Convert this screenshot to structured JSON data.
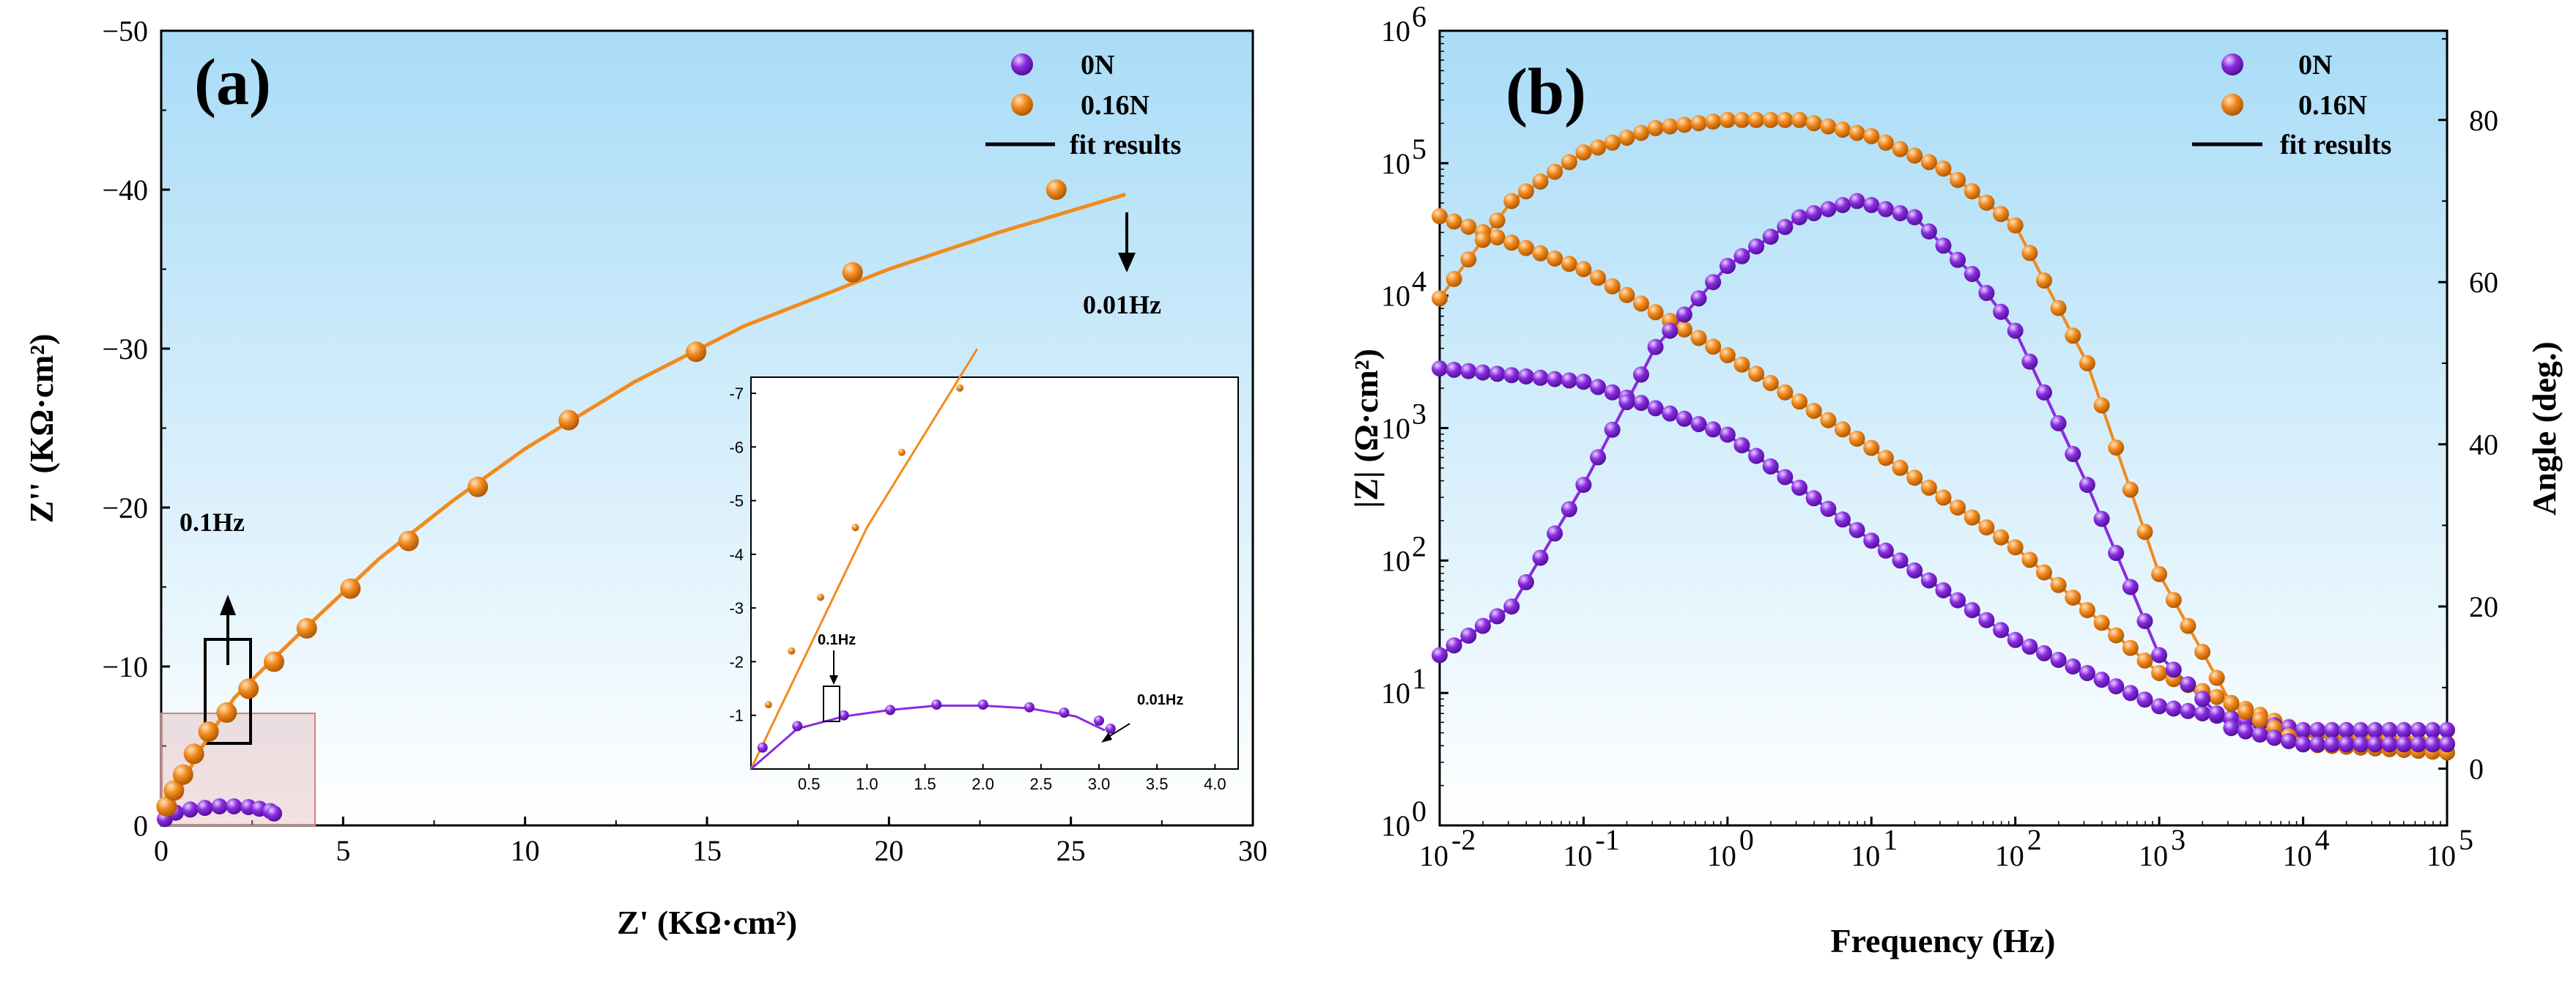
{
  "colors": {
    "n0": "#8a2be2",
    "n016": "#f28a1c",
    "fit": "#000000",
    "bg_top": "#a9dcf7",
    "bg_bottom": "#ffffff"
  },
  "chart_data": [
    {
      "type": "scatter",
      "panel_label": "(a)",
      "title": "",
      "xlabel": "Z' (KΩ·cm²)",
      "ylabel": "Z'' (KΩ·cm²)",
      "xlim": [
        0,
        30
      ],
      "ylim": [
        0,
        -50
      ],
      "xticks": [
        "0",
        "5",
        "10",
        "15",
        "20",
        "25",
        "30"
      ],
      "yticks": [
        "0",
        "−10",
        "−20",
        "−30",
        "−40",
        "−50"
      ],
      "legend": [
        "0N",
        "0.16N",
        "fit results"
      ],
      "annotations": [
        "0.01Hz",
        "0.1Hz"
      ],
      "series": [
        {
          "name": "0N",
          "x": [
            0.1,
            0.4,
            0.8,
            1.2,
            1.6,
            2.0,
            2.4,
            2.7,
            3.0,
            3.1
          ],
          "y": [
            -0.4,
            -0.8,
            -1.0,
            -1.1,
            -1.2,
            -1.2,
            -1.15,
            -1.05,
            -0.9,
            -0.75
          ]
        },
        {
          "name": "0.16N",
          "x": [
            0.15,
            0.35,
            0.6,
            0.9,
            1.3,
            1.8,
            2.4,
            3.1,
            4.0,
            5.2,
            6.8,
            8.7,
            11.2,
            14.7,
            19.0,
            24.6
          ],
          "y": [
            -1.2,
            -2.2,
            -3.2,
            -4.5,
            -5.9,
            -7.1,
            -8.6,
            -10.3,
            -12.4,
            -14.9,
            -17.9,
            -21.3,
            -25.5,
            -29.8,
            -34.8,
            -40.0
          ]
        },
        {
          "name": "fit results (0.16N)",
          "x": [
            0,
            1,
            2,
            3,
            4,
            6,
            8,
            10,
            13,
            16,
            20,
            23,
            26.5
          ],
          "y": [
            0,
            -4.5,
            -8.0,
            -10.3,
            -12.5,
            -16.8,
            -20.4,
            -23.7,
            -27.9,
            -31.4,
            -35.0,
            -37.3,
            -39.7
          ]
        },
        {
          "name": "fit results (0N)",
          "x": [
            0,
            0.4,
            0.8,
            1.2,
            1.6,
            2.0,
            2.4,
            2.8,
            3.05
          ],
          "y": [
            0,
            -0.75,
            -0.98,
            -1.1,
            -1.18,
            -1.18,
            -1.13,
            -0.98,
            -0.72
          ]
        }
      ],
      "inset": {
        "xlim": [
          0,
          4.2
        ],
        "ylim": [
          0,
          -7.3
        ],
        "xticks": [
          "0.5",
          "1.0",
          "1.5",
          "2.0",
          "2.5",
          "3.0",
          "3.5",
          "4.0"
        ],
        "yticks": [
          "-1",
          "-2",
          "-3",
          "-4",
          "-5",
          "-6",
          "-7"
        ],
        "annotations": [
          "0.1Hz",
          "0.01Hz"
        ]
      }
    },
    {
      "type": "line",
      "panel_label": "(b)",
      "title": "",
      "xlabel": "Frequency (Hz)",
      "ylabel": "|Z| (Ω·cm²)",
      "ylabel_right": "Angle (deg.)",
      "xlim": [
        0.01,
        100000
      ],
      "ylim": [
        1,
        1000000
      ],
      "ylim_right": [
        -7,
        91
      ],
      "x_scale": "log",
      "y_scale": "log",
      "xtick_exponents": [
        "-2",
        "-1",
        "0",
        "1",
        "2",
        "3",
        "4",
        "5"
      ],
      "ytick_exponents": [
        "0",
        "1",
        "2",
        "3",
        "4",
        "5",
        "6"
      ],
      "yticks_right": [
        "0",
        "20",
        "40",
        "60",
        "80"
      ],
      "legend": [
        "0N",
        "0.16N",
        "fit results"
      ],
      "series": [
        {
          "name": "0N |Z|",
          "log10_freq": [
            -2,
            -1,
            0,
            1,
            2,
            3,
            4,
            5
          ],
          "log10_Z": [
            3.45,
            3.35,
            2.95,
            2.15,
            1.4,
            0.9,
            0.72,
            0.72
          ]
        },
        {
          "name": "0.16N |Z|",
          "log10_freq": [
            -2,
            -1,
            0,
            1,
            2,
            3,
            4,
            5
          ],
          "log10_Z": [
            4.6,
            4.2,
            3.55,
            2.85,
            2.1,
            1.15,
            0.7,
            0.62
          ]
        },
        {
          "name": "0N angle",
          "log10_freq": [
            -2,
            -1.5,
            -1,
            -0.5,
            0,
            0.5,
            0.9,
            1.3,
            1.7,
            2,
            2.5,
            3,
            3.5,
            4,
            5
          ],
          "angle": [
            14,
            20,
            35,
            52,
            62,
            68,
            70,
            68,
            61,
            54,
            35,
            14,
            5,
            3,
            3
          ]
        },
        {
          "name": "0.16N angle",
          "log10_freq": [
            -2,
            -1.5,
            -1,
            -0.5,
            0,
            0.5,
            1,
            1.5,
            2,
            2.5,
            3,
            3.5,
            4,
            5
          ],
          "angle": [
            58,
            70,
            76,
            79,
            80,
            80,
            78,
            74,
            67,
            50,
            24,
            8,
            3,
            2
          ]
        }
      ]
    }
  ]
}
